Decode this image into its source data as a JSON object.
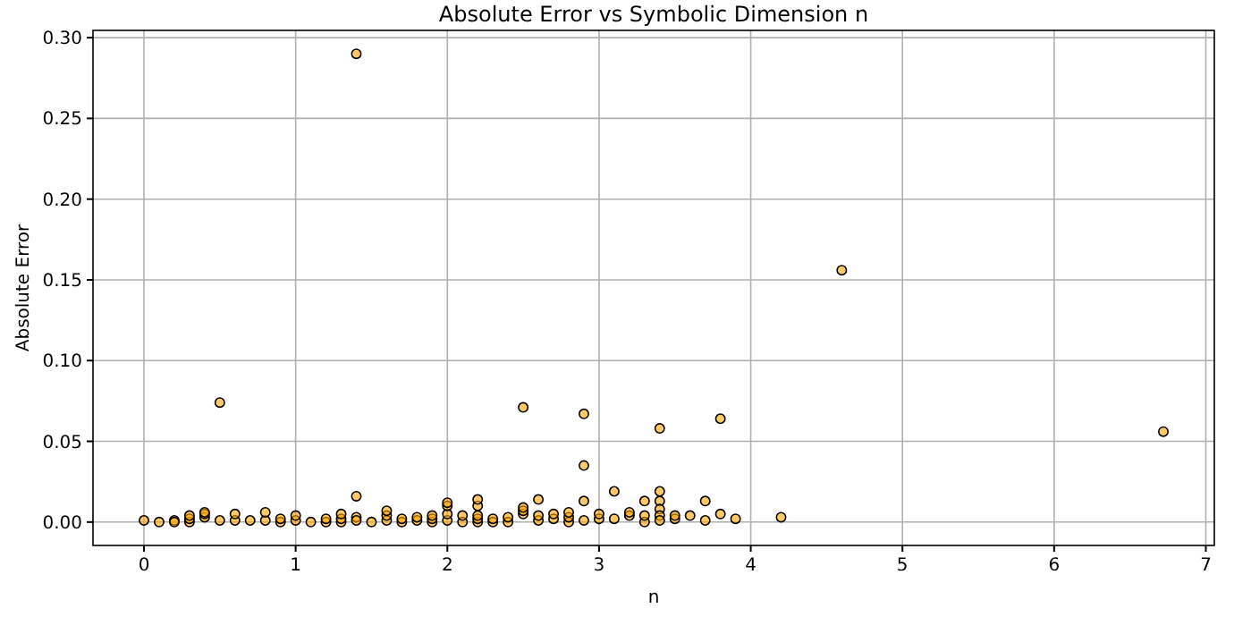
{
  "chart_data": {
    "type": "scatter",
    "title": "Absolute Error vs Symbolic Dimension n",
    "xlabel": "n",
    "ylabel": "Absolute Error",
    "xlim": [
      -0.336,
      7.056
    ],
    "ylim": [
      -0.0145,
      0.3045
    ],
    "xticks": [
      0,
      1,
      2,
      3,
      4,
      5,
      6,
      7
    ],
    "yticks": [
      {
        "value": 0,
        "label": "0.00"
      },
      {
        "value": 0.05,
        "label": "0.05"
      },
      {
        "value": 0.1,
        "label": "0.10"
      },
      {
        "value": 0.15,
        "label": "0.15"
      },
      {
        "value": 0.2,
        "label": "0.20"
      },
      {
        "value": 0.25,
        "label": "0.25"
      },
      {
        "value": 0.3,
        "label": "0.30"
      }
    ],
    "grid": true,
    "marker": "circle",
    "series": [
      {
        "color": "#ffa500",
        "x": [
          0,
          0.1,
          0.2,
          0.2,
          0.3,
          0.3,
          0.3,
          0.4,
          0.4,
          0.4,
          0.5,
          0.5,
          0.6,
          0.6,
          0.7,
          0.8,
          0.8,
          0.9,
          0.9,
          1.0,
          1.0,
          1.1,
          1.2,
          1.2,
          1.3,
          1.3,
          1.3,
          1.4,
          1.4,
          1.4,
          1.4,
          1.5,
          1.6,
          1.6,
          1.6,
          1.7,
          1.7,
          1.8,
          1.8,
          1.9,
          1.9,
          1.9,
          2.0,
          2.0,
          2.0,
          2.0,
          2.1,
          2.1,
          2.2,
          2.2,
          2.2,
          2.2,
          2.2,
          2.3,
          2.3,
          2.4,
          2.4,
          2.5,
          2.5,
          2.5,
          2.5,
          2.6,
          2.6,
          2.6,
          2.7,
          2.7,
          2.8,
          2.8,
          2.8,
          2.9,
          2.9,
          2.9,
          2.9,
          3.0,
          3.0,
          3.1,
          3.1,
          3.2,
          3.2,
          3.3,
          3.3,
          3.3,
          3.4,
          3.4,
          3.4,
          3.4,
          3.4,
          3.4,
          3.5,
          3.5,
          3.6,
          3.7,
          3.7,
          3.8,
          3.8,
          3.9,
          4.2,
          4.6,
          6.72
        ],
        "values": [
          0.001,
          0,
          0.001,
          0,
          0,
          0.002,
          0.004,
          0.003,
          0.005,
          0.006,
          0.074,
          0.001,
          0.001,
          0.005,
          0.001,
          0.001,
          0.006,
          0,
          0.002,
          0.001,
          0.004,
          0,
          0,
          0.002,
          0,
          0.002,
          0.005,
          0.29,
          0.016,
          0.003,
          0.001,
          0,
          0.001,
          0.004,
          0.007,
          0,
          0.002,
          0.001,
          0.003,
          0,
          0.002,
          0.004,
          0.001,
          0.005,
          0.01,
          0.012,
          0,
          0.004,
          0,
          0.002,
          0.004,
          0.01,
          0.014,
          0,
          0.002,
          0,
          0.003,
          0.071,
          0.005,
          0.007,
          0.009,
          0.001,
          0.004,
          0.014,
          0.002,
          0.005,
          0,
          0.003,
          0.006,
          0.067,
          0.035,
          0.013,
          0.001,
          0.002,
          0.005,
          0.002,
          0.019,
          0.004,
          0.006,
          0,
          0.004,
          0.013,
          0.058,
          0.019,
          0.013,
          0.008,
          0.004,
          0.001,
          0.002,
          0.004,
          0.004,
          0.001,
          0.013,
          0.064,
          0.005,
          0.002,
          0.003,
          0.156,
          0.056
        ]
      }
    ]
  }
}
